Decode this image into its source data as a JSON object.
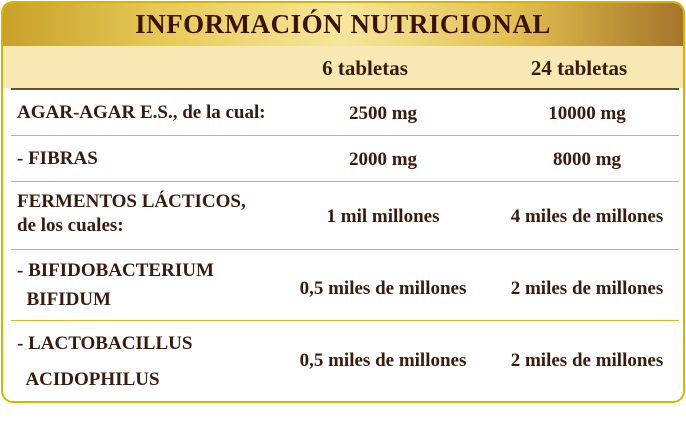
{
  "title": "INFORMACIÓN NUTRICIONAL",
  "columns": [
    "6 tabletas",
    "24 tabletas"
  ],
  "rows": [
    {
      "label": [
        "AGAR-AGAR E.S., de la cual:"
      ],
      "v1": "2500 mg",
      "v2": "10000 mg"
    },
    {
      "label": [
        "- FIBRAS"
      ],
      "v1": "2000 mg",
      "v2": "8000 mg"
    },
    {
      "label": [
        "FERMENTOS LÁCTICOS,",
        "de los cuales:"
      ],
      "v1": "1 mil millones",
      "v2": "4 miles de millones"
    },
    {
      "label": [
        "- BIFIDOBACTERIUM",
        "  BIFIDUM"
      ],
      "v1": "0,5 miles de millones",
      "v2": "2 miles de millones"
    },
    {
      "label": [
        "- LACTOBACILLUS",
        "  ACIDOPHILUS"
      ],
      "v1": "0,5 miles de millones",
      "v2": "2 miles de millones"
    }
  ],
  "colors": {
    "border": "#d6b400",
    "header_band": "#f8e8b4",
    "text": "#3a1a0c"
  }
}
